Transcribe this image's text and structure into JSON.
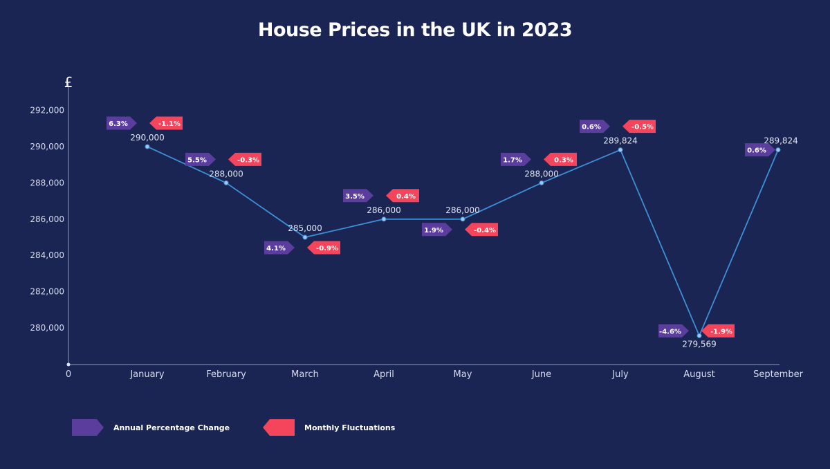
{
  "chart_data": {
    "type": "line",
    "title": "House Prices in the UK in 2023",
    "ylabel": "£",
    "xlabel": "",
    "origin_label": "0",
    "categories": [
      "January",
      "February",
      "March",
      "April",
      "May",
      "June",
      "July",
      "August",
      "September"
    ],
    "ylim": [
      278000,
      292000
    ],
    "y_ticks": [
      280000,
      282000,
      284000,
      286000,
      288000,
      290000,
      292000
    ],
    "y_tick_labels": [
      "280,000",
      "282,000",
      "284,000",
      "286,000",
      "288,000",
      "290,000",
      "292,000"
    ],
    "grid": false,
    "series": [
      {
        "values": [
          290000,
          288000,
          285000,
          286000,
          286000,
          288000,
          289824,
          279569,
          289824
        ],
        "value_labels": [
          "290,000",
          "288,000",
          "285,000",
          "286,000",
          "286,000",
          "288,000",
          "289,824",
          "279,569",
          "289,824"
        ],
        "color": "#3d8fd6"
      }
    ],
    "annotations": {
      "annual_change": [
        "6.3%",
        "5.5%",
        "4.1%",
        "3.5%",
        "1.9%",
        "1.7%",
        "0.6%",
        "-4.6%",
        "0.6%"
      ],
      "monthly_fluctuation": [
        "-1.1%",
        "-0.3%",
        "-0.9%",
        "0.4%",
        "-0.4%",
        "0.3%",
        "-0.5%",
        "-1.9%",
        null
      ]
    },
    "legend": {
      "placement": "bottom-left",
      "items": [
        {
          "label": "Annual Percentage Change",
          "color": "#5b3d9e"
        },
        {
          "label": "Monthly Fluctuations",
          "color": "#f5455c"
        }
      ]
    }
  },
  "colors": {
    "background": "#1b2553",
    "axis": "#8e9bbd",
    "tick_text": "#d6dcef",
    "annual_tag": "#5b3d9e",
    "monthly_tag": "#f5455c",
    "line": "#3d8fd6"
  }
}
